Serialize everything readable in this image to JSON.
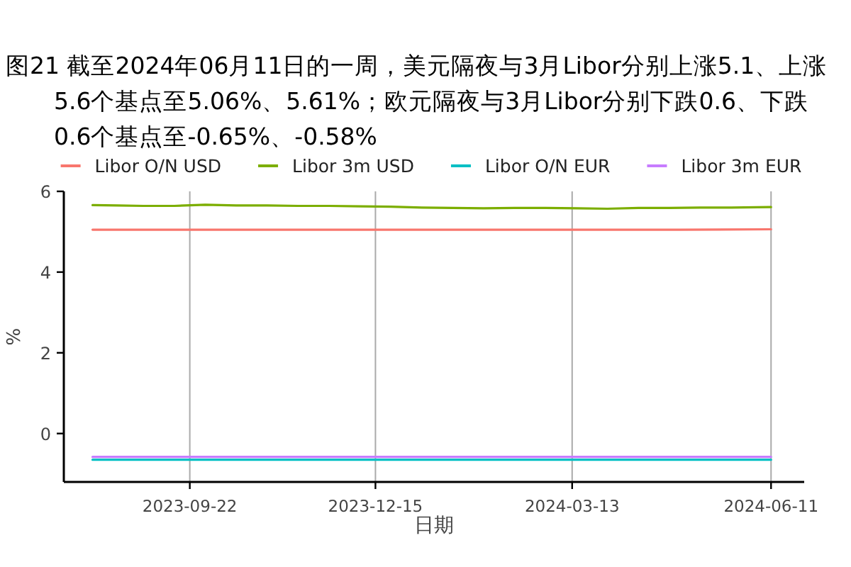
{
  "chart_data": {
    "type": "line",
    "title": "图21  截至2024年06月11日的一周，美元隔夜与3月Libor分别上涨5.1、上涨5.6个基点至5.06%、5.61%；欧元隔夜与3月Libor分别下跌0.6、下跌0.6个基点至-0.65%、-0.58%",
    "xlabel": "日期",
    "ylabel": "%",
    "xlim": [
      "2023-07-27",
      "2024-06-26"
    ],
    "xticks": [
      "2023-09-22",
      "2023-12-15",
      "2024-03-13",
      "2024-06-11"
    ],
    "ylim": [
      -1.2,
      6
    ],
    "yticks": [
      0,
      2,
      4,
      6
    ],
    "grid": "x",
    "legend": "top",
    "marker": "none",
    "line_style": "solid",
    "series": [
      {
        "name": "Libor O/N USD",
        "color": "#f8766d",
        "x": [
          "2023-08-09",
          "2023-11-01",
          "2024-02-01",
          "2024-05-01",
          "2024-06-11"
        ],
        "values": [
          5.05,
          5.05,
          5.05,
          5.05,
          5.06
        ]
      },
      {
        "name": "Libor 3m USD",
        "color": "#7cae00",
        "x": [
          "2023-08-09",
          "2023-08-20",
          "2023-09-01",
          "2023-09-15",
          "2023-09-29",
          "2023-10-13",
          "2023-10-27",
          "2023-11-10",
          "2023-11-24",
          "2023-12-08",
          "2023-12-22",
          "2024-01-05",
          "2024-01-19",
          "2024-02-02",
          "2024-02-16",
          "2024-03-01",
          "2024-03-15",
          "2024-03-29",
          "2024-04-12",
          "2024-04-26",
          "2024-05-10",
          "2024-05-24",
          "2024-06-11"
        ],
        "values": [
          5.66,
          5.65,
          5.64,
          5.64,
          5.67,
          5.65,
          5.65,
          5.64,
          5.64,
          5.63,
          5.62,
          5.6,
          5.59,
          5.58,
          5.59,
          5.59,
          5.58,
          5.57,
          5.59,
          5.59,
          5.6,
          5.6,
          5.61
        ]
      },
      {
        "name": "Libor O/N EUR",
        "color": "#00bfc4",
        "x": [
          "2023-08-09",
          "2023-11-01",
          "2024-02-01",
          "2024-05-01",
          "2024-06-11"
        ],
        "values": [
          -0.65,
          -0.65,
          -0.65,
          -0.65,
          -0.65
        ]
      },
      {
        "name": "Libor 3m EUR",
        "color": "#c77cff",
        "x": [
          "2023-08-09",
          "2023-11-01",
          "2024-02-01",
          "2024-05-01",
          "2024-06-11"
        ],
        "values": [
          -0.58,
          -0.58,
          -0.58,
          -0.58,
          -0.58
        ]
      }
    ]
  }
}
